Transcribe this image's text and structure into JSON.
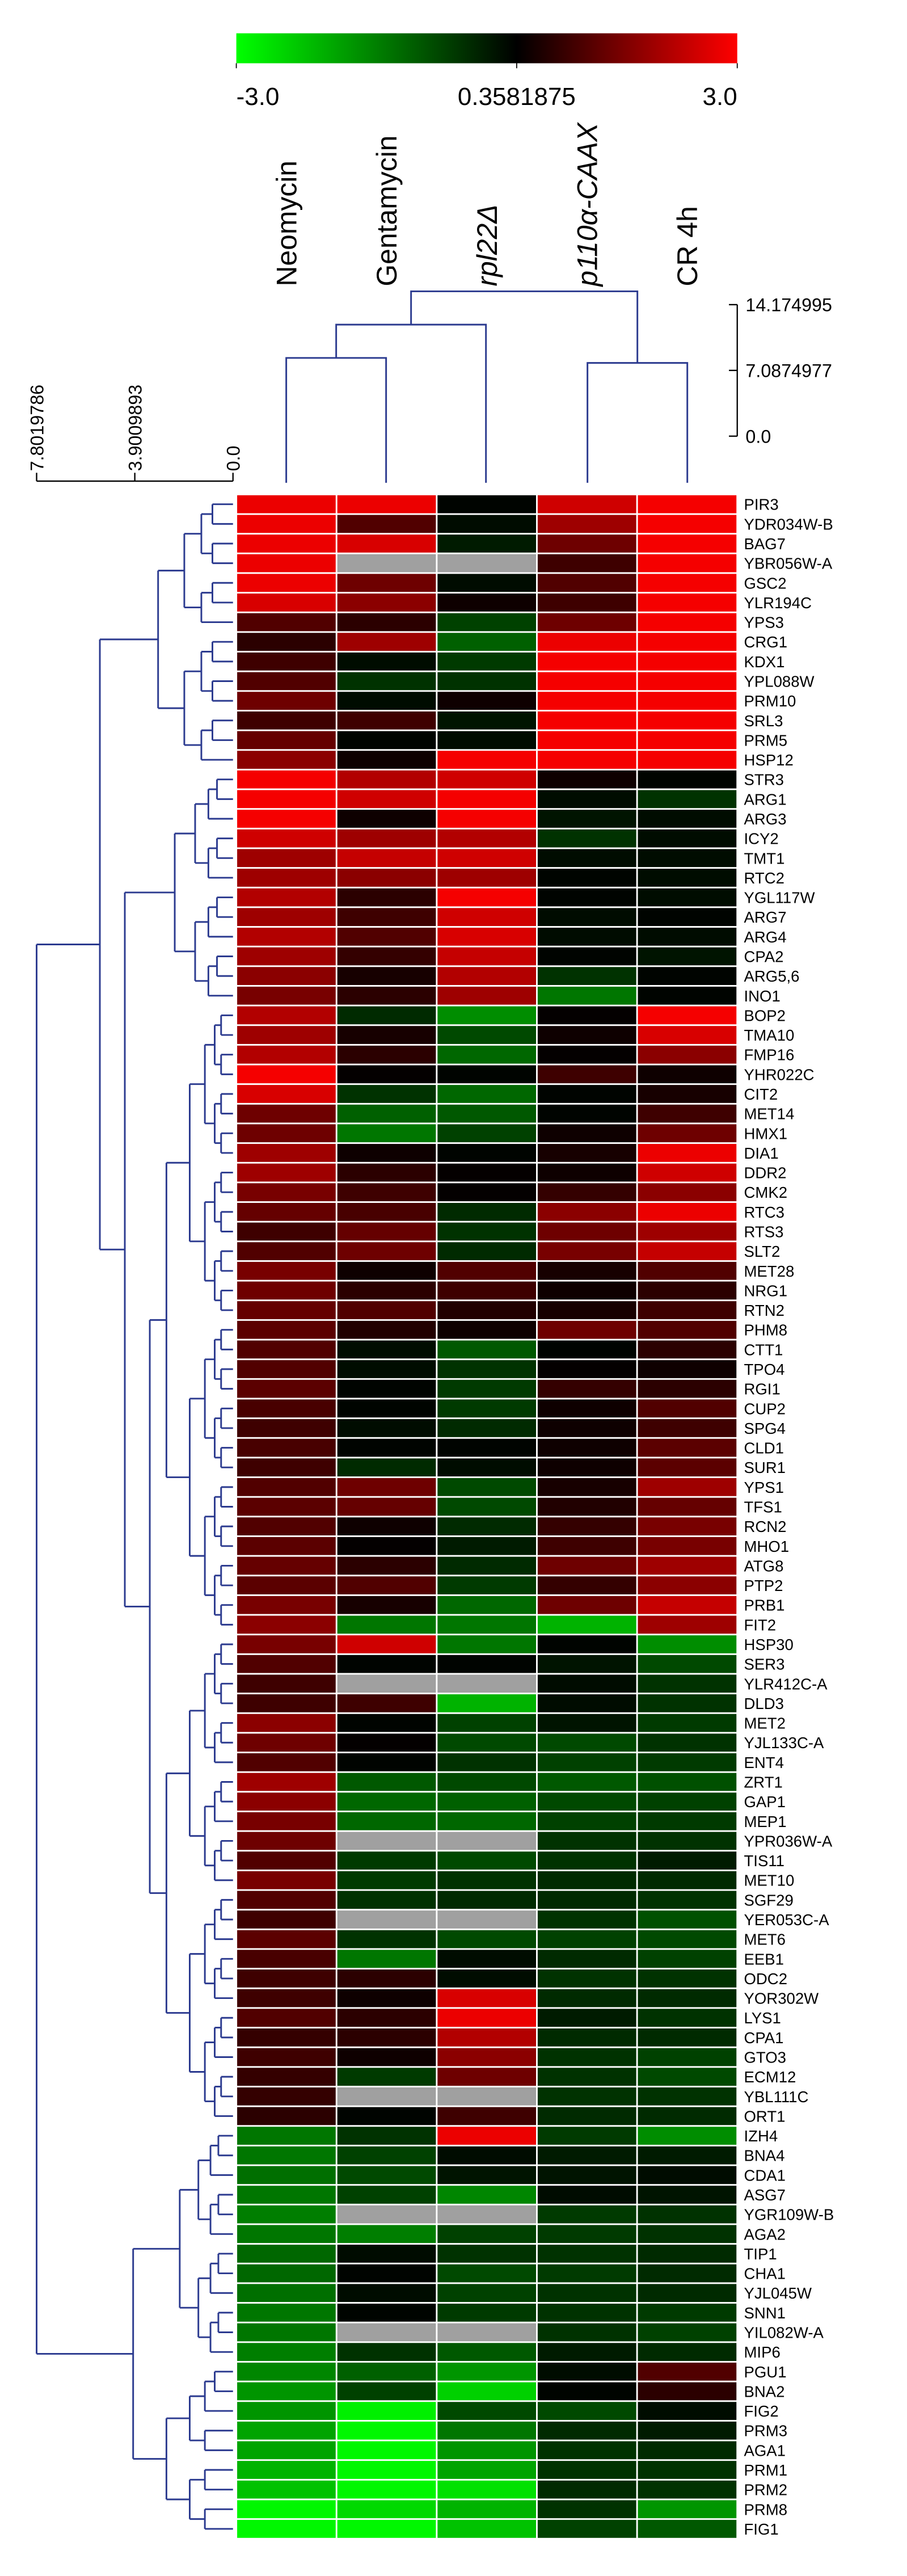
{
  "chart_data": {
    "type": "heatmap",
    "x": [
      "Neomycin",
      "Gentamycin",
      "rpl22Δ",
      "p110α-CAAX",
      "CR 4h"
    ],
    "y": [
      "PIR3",
      "YDR034W-B",
      "BAG7",
      "YBR056W-A",
      "GSC2",
      "YLR194C",
      "YPS3",
      "CRG1",
      "KDX1",
      "YPL088W",
      "PRM10",
      "SRL3",
      "PRM5",
      "HSP12",
      "STR3",
      "ARG1",
      "ARG3",
      "ICY2",
      "TMT1",
      "RTC2",
      "YGL117W",
      "ARG7",
      "ARG4",
      "CPA2",
      "ARG5,6",
      "INO1",
      "BOP2",
      "TMA10",
      "FMP16",
      "YHR022C",
      "CIT2",
      "MET14",
      "HMX1",
      "DIA1",
      "DDR2",
      "CMK2",
      "RTC3",
      "RTS3",
      "SLT2",
      "MET28",
      "NRG1",
      "RTN2",
      "PHM8",
      "CTT1",
      "TPO4",
      "RGI1",
      "CUP2",
      "SPG4",
      "CLD1",
      "SUR1",
      "YPS1",
      "TFS1",
      "RCN2",
      "MHO1",
      "ATG8",
      "PTP2",
      "PRB1",
      "FIT2",
      "HSP30",
      "SER3",
      "YLR412C-A",
      "DLD3",
      "MET2",
      "YJL133C-A",
      "ENT4",
      "ZRT1",
      "GAP1",
      "MEP1",
      "YPR036W-A",
      "TIS11",
      "MET10",
      "SGF29",
      "YER053C-A",
      "MET6",
      "EEB1",
      "ODC2",
      "YOR302W",
      "LYS1",
      "CPA1",
      "GTO3",
      "ECM12",
      "YBL111C",
      "ORT1",
      "IZH4",
      "BNA4",
      "CDA1",
      "ASG7",
      "YGR109W-B",
      "AGA2",
      "TIP1",
      "CHA1",
      "YJL045W",
      "SNN1",
      "YIL082W-A",
      "MIP6",
      "PGU1",
      "BNA2",
      "FIG2",
      "PRM3",
      "AGA1",
      "PRM1",
      "PRM2",
      "PRM8",
      "FIG1"
    ],
    "values": [
      [
        2.8,
        2.8,
        0.3,
        2.5,
        2.9
      ],
      [
        2.8,
        1.2,
        0.2,
        2.0,
        2.9
      ],
      [
        2.8,
        2.6,
        0,
        1.5,
        2.9
      ],
      [
        2.8,
        null,
        null,
        1.0,
        2.9
      ],
      [
        2.8,
        1.5,
        0.2,
        1.2,
        2.9
      ],
      [
        2.6,
        1.8,
        0.5,
        1.0,
        2.9
      ],
      [
        1.2,
        0.8,
        -0.5,
        1.5,
        2.9
      ],
      [
        0.8,
        2.0,
        -0.9,
        2.8,
        2.9
      ],
      [
        1.0,
        0.2,
        -0.4,
        2.9,
        2.9
      ],
      [
        1.2,
        -0.3,
        -0.3,
        2.9,
        2.9
      ],
      [
        1.5,
        0.2,
        0.5,
        2.9,
        2.9
      ],
      [
        1.0,
        1.0,
        0.1,
        2.9,
        2.9
      ],
      [
        1.4,
        0.3,
        0.2,
        2.9,
        2.9
      ],
      [
        1.8,
        0.5,
        2.9,
        2.9,
        2.9
      ],
      [
        2.9,
        2.2,
        2.5,
        0.5,
        0.3
      ],
      [
        2.9,
        2.5,
        2.9,
        0.2,
        -0.3
      ],
      [
        2.9,
        0.5,
        2.9,
        0.1,
        0.2
      ],
      [
        2.5,
        2.0,
        2.2,
        -0.3,
        0.2
      ],
      [
        2.0,
        2.4,
        2.5,
        0.2,
        0.2
      ],
      [
        2.0,
        1.8,
        2.0,
        0.3,
        0.2
      ],
      [
        2.2,
        0.8,
        2.9,
        0.3,
        0.2
      ],
      [
        2.0,
        1.0,
        2.5,
        0.2,
        0.3
      ],
      [
        2.2,
        1.2,
        2.6,
        0.2,
        0.2
      ],
      [
        2.0,
        0.9,
        2.4,
        0.3,
        0.1
      ],
      [
        1.8,
        0.6,
        2.2,
        -0.3,
        0.3
      ],
      [
        1.6,
        0.8,
        2.0,
        -1.2,
        0.3
      ],
      [
        2.2,
        -0.2,
        -1.5,
        0.4,
        2.9
      ],
      [
        2.0,
        0.6,
        -0.6,
        0.5,
        2.6
      ],
      [
        2.2,
        0.8,
        -1.0,
        0.4,
        1.8
      ],
      [
        2.9,
        0.4,
        0.3,
        1.0,
        0.5
      ],
      [
        2.6,
        -0.3,
        -1.0,
        0.3,
        0.6
      ],
      [
        1.5,
        -0.9,
        -0.8,
        0.3,
        1.0
      ],
      [
        1.5,
        -1.2,
        -0.5,
        0.5,
        1.5
      ],
      [
        2.0,
        0.5,
        0.3,
        0.6,
        2.8
      ],
      [
        2.0,
        0.8,
        0.4,
        0.5,
        2.5
      ],
      [
        1.6,
        1.0,
        0.4,
        0.9,
        1.8
      ],
      [
        1.4,
        1.1,
        -0.2,
        1.8,
        2.8
      ],
      [
        1.0,
        1.4,
        -0.3,
        1.5,
        2.0
      ],
      [
        1.2,
        1.5,
        -0.2,
        1.6,
        2.4
      ],
      [
        1.6,
        0.5,
        1.2,
        0.6,
        1.2
      ],
      [
        1.5,
        0.8,
        1.0,
        0.5,
        0.8
      ],
      [
        1.4,
        1.2,
        0.7,
        0.6,
        1.0
      ],
      [
        1.3,
        0.7,
        0.5,
        1.5,
        1.2
      ],
      [
        1.2,
        0.2,
        -0.8,
        0.3,
        0.8
      ],
      [
        1.2,
        0.2,
        -0.3,
        0.4,
        0.5
      ],
      [
        1.3,
        0.3,
        -0.4,
        0.9,
        0.8
      ],
      [
        1.1,
        0.3,
        -0.4,
        0.5,
        1.2
      ],
      [
        1.0,
        0.2,
        -0.2,
        0.5,
        1.0
      ],
      [
        1.1,
        0.3,
        0.3,
        0.5,
        1.3
      ],
      [
        1.0,
        -0.2,
        0.2,
        0.5,
        1.3
      ],
      [
        1.2,
        1.5,
        -0.6,
        0.6,
        2.0
      ],
      [
        1.3,
        1.4,
        -0.6,
        0.7,
        1.4
      ],
      [
        1.2,
        0.5,
        -0.2,
        0.9,
        1.6
      ],
      [
        1.3,
        0.4,
        0,
        1.0,
        1.6
      ],
      [
        1.4,
        0.8,
        -0.2,
        1.5,
        2.0
      ],
      [
        1.3,
        1.2,
        -0.4,
        0.9,
        1.8
      ],
      [
        1.6,
        0.6,
        -1.0,
        1.5,
        2.4
      ],
      [
        1.8,
        -1.2,
        -1.2,
        -2.0,
        2.0
      ],
      [
        1.6,
        2.5,
        -1.2,
        0.3,
        -1.5
      ],
      [
        1.2,
        0.3,
        0.3,
        0.1,
        -0.6
      ],
      [
        1.0,
        null,
        null,
        0.2,
        -0.3
      ],
      [
        1.0,
        1.0,
        -2.0,
        0.2,
        -0.3
      ],
      [
        1.8,
        0.3,
        -0.5,
        0.1,
        -0.4
      ],
      [
        1.5,
        0.4,
        -0.6,
        -0.6,
        -0.3
      ],
      [
        1.2,
        0.3,
        -0.3,
        -0.5,
        -0.4
      ],
      [
        2.0,
        -0.8,
        -0.6,
        -0.8,
        -0.7
      ],
      [
        1.8,
        -1.0,
        -0.9,
        -0.6,
        -0.5
      ],
      [
        1.6,
        -1.0,
        -1.0,
        -0.5,
        -0.4
      ],
      [
        1.5,
        null,
        null,
        -0.3,
        -0.3
      ],
      [
        1.2,
        -0.4,
        -0.6,
        -0.3,
        0
      ],
      [
        1.6,
        -0.4,
        -0.3,
        -0.2,
        -0.2
      ],
      [
        1.2,
        -0.3,
        -0.2,
        -0.2,
        -0.3
      ],
      [
        1.0,
        null,
        null,
        -0.3,
        -0.7
      ],
      [
        1.3,
        -0.3,
        -0.6,
        -0.5,
        -0.6
      ],
      [
        1.1,
        -1.2,
        0.2,
        -0.2,
        -0.5
      ],
      [
        1.0,
        0.8,
        0.2,
        -0.3,
        -0.3
      ],
      [
        1.0,
        0.5,
        2.6,
        -0.2,
        -0.2
      ],
      [
        1.2,
        0.8,
        2.8,
        0,
        -0.3
      ],
      [
        0.9,
        0.8,
        2.2,
        -0.2,
        -0.2
      ],
      [
        1.0,
        0.5,
        1.8,
        -0.3,
        -0.5
      ],
      [
        0.9,
        -0.4,
        1.5,
        -0.3,
        -0.6
      ],
      [
        0.9,
        null,
        null,
        -0.3,
        -0.3
      ],
      [
        0.8,
        0.3,
        1.0,
        -0.2,
        -0.2
      ],
      [
        -1.2,
        -0.3,
        2.8,
        -0.4,
        -1.5
      ],
      [
        -1.2,
        -0.5,
        0.2,
        0,
        0
      ],
      [
        -1.1,
        -0.6,
        0.1,
        0.1,
        0.2
      ],
      [
        -1.2,
        -0.5,
        -1.4,
        0.2,
        0.1
      ],
      [
        -1.3,
        null,
        null,
        -0.4,
        -0.3
      ],
      [
        -1.2,
        -1.3,
        -0.5,
        -0.4,
        -0.3
      ],
      [
        -1.0,
        0.2,
        -0.3,
        -0.3,
        -0.2
      ],
      [
        -1.0,
        0.3,
        -0.6,
        -0.4,
        -0.2
      ],
      [
        -1.1,
        0.2,
        -0.5,
        -0.3,
        -0.2
      ],
      [
        -1.2,
        0.3,
        -0.4,
        -0.3,
        -0.4
      ],
      [
        -1.2,
        null,
        null,
        -0.3,
        -0.5
      ],
      [
        -1.3,
        -0.3,
        -0.8,
        0,
        -0.2
      ],
      [
        -1.4,
        -0.9,
        -1.6,
        0.2,
        1.2
      ],
      [
        -1.6,
        -0.5,
        -2.4,
        0.3,
        0.8
      ],
      [
        -1.6,
        -2.8,
        -0.6,
        -0.6,
        0.2
      ],
      [
        -1.8,
        -2.9,
        -1.2,
        -0.2,
        0
      ],
      [
        -1.8,
        -2.9,
        -1.6,
        -0.3,
        -0.2
      ],
      [
        -2.0,
        -2.9,
        -1.8,
        -0.3,
        -0.3
      ],
      [
        -2.2,
        -2.9,
        -2.6,
        -0.2,
        -0.3
      ],
      [
        -2.9,
        -2.5,
        -2.0,
        -0.3,
        -1.6
      ],
      [
        -2.9,
        -2.9,
        -2.2,
        -0.5,
        -0.8
      ]
    ],
    "zlim": [
      -3,
      3
    ],
    "colors": [
      "#00ff00",
      "#000000",
      "#ff0000"
    ],
    "missing_color": "#a0a0a0",
    "colorbar_ticks": [
      {
        "value": -3,
        "label": "-3.0"
      },
      0.3581875,
      {
        "value": 3,
        "label": "3.0"
      }
    ],
    "column_dendrogram_ticks": [
      14.174995,
      7.0874977,
      {
        "value": 0,
        "label": "0.0"
      }
    ],
    "row_dendrogram_ticks": [
      7.8019786,
      3.9009893,
      {
        "value": 0,
        "label": "0.0"
      }
    ]
  }
}
